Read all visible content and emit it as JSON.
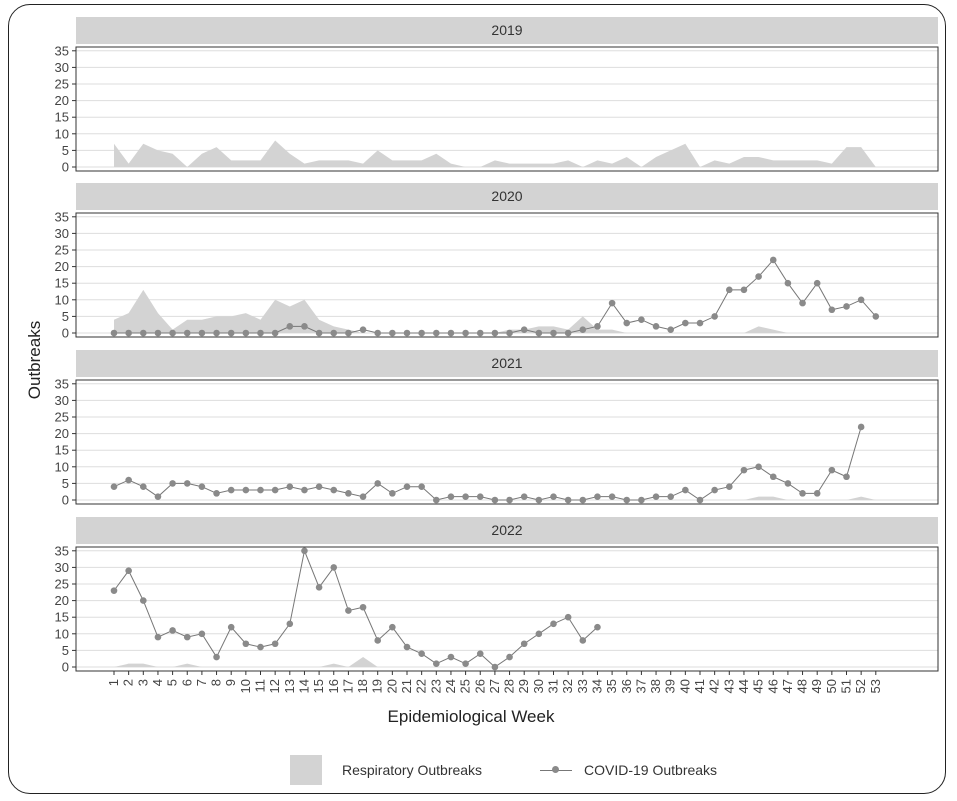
{
  "chart_data": {
    "type": "line",
    "ylabel": "Outbreaks",
    "xlabel": "Epidemiological Week",
    "ylim": [
      0,
      35
    ],
    "yticks": [
      0,
      5,
      10,
      15,
      20,
      25,
      30,
      35
    ],
    "weeks": [
      "1",
      "2",
      "3",
      "4",
      "5",
      "6",
      "7",
      "8",
      "9",
      "10",
      "11",
      "12",
      "13",
      "14",
      "15",
      "16",
      "17",
      "18",
      "19",
      "20",
      "21",
      "22",
      "23",
      "24",
      "25",
      "26",
      "27",
      "28",
      "29",
      "30",
      "31",
      "32",
      "33",
      "34",
      "35",
      "36",
      "37",
      "38",
      "39",
      "40",
      "41",
      "42",
      "43",
      "44",
      "45",
      "46",
      "47",
      "48",
      "49",
      "50",
      "51",
      "52",
      "53"
    ],
    "colors": {
      "area": "#d3d3d3",
      "line": "#777777",
      "marker": "#8a8a8a",
      "strip": "#d3d3d3"
    },
    "legend": {
      "area_label": "Respiratory Outbreaks",
      "line_label": "COVID-19 Outbreaks",
      "position": "bottom"
    },
    "panels": [
      {
        "title": "2019",
        "respiratory": [
          7,
          1,
          7,
          5,
          4,
          0,
          4,
          6,
          2,
          2,
          2,
          8,
          4,
          1,
          2,
          2,
          2,
          1,
          5,
          2,
          2,
          2,
          4,
          1,
          0,
          0,
          2,
          1,
          1,
          1,
          1,
          2,
          0,
          2,
          1,
          3,
          0,
          3,
          5,
          7,
          0,
          2,
          1,
          3,
          3,
          2,
          2,
          2,
          2,
          1,
          6,
          6,
          0
        ],
        "covid": []
      },
      {
        "title": "2020",
        "respiratory": [
          4,
          6,
          13,
          6,
          1,
          4,
          4,
          5,
          5,
          6,
          4,
          10,
          8,
          10,
          4,
          2,
          1,
          0,
          0,
          0,
          0,
          0,
          0,
          0,
          0,
          0,
          0,
          1,
          1,
          2,
          2,
          1,
          5,
          1,
          1,
          0,
          0,
          0,
          0,
          0,
          0,
          0,
          0,
          0,
          2,
          1,
          0,
          0,
          0,
          0,
          0,
          0,
          0
        ],
        "covid": [
          0,
          0,
          0,
          0,
          0,
          0,
          0,
          0,
          0,
          0,
          0,
          0,
          2,
          2,
          0,
          0,
          0,
          1,
          0,
          0,
          0,
          0,
          0,
          0,
          0,
          0,
          0,
          0,
          1,
          0,
          0,
          0,
          1,
          2,
          9,
          3,
          4,
          2,
          1,
          3,
          3,
          5,
          13,
          13,
          17,
          22,
          15,
          9,
          15,
          7,
          8,
          10,
          5
        ]
      },
      {
        "title": "2021",
        "respiratory": [
          0,
          0,
          0,
          0,
          0,
          0,
          0,
          0,
          0,
          0,
          0,
          0,
          0,
          0,
          0,
          0,
          0,
          0,
          0,
          0,
          0,
          0,
          0,
          0,
          0,
          0,
          0,
          0,
          0,
          0,
          0,
          0,
          0,
          0,
          0,
          0,
          0,
          0,
          0,
          0,
          0,
          0,
          0,
          0,
          1,
          1,
          0,
          0,
          0,
          0,
          0,
          1,
          0
        ],
        "covid": [
          4,
          6,
          4,
          1,
          5,
          5,
          4,
          2,
          3,
          3,
          3,
          3,
          4,
          3,
          4,
          3,
          2,
          1,
          5,
          2,
          4,
          4,
          0,
          1,
          1,
          1,
          0,
          0,
          1,
          0,
          1,
          0,
          0,
          1,
          1,
          0,
          0,
          1,
          1,
          3,
          0,
          3,
          4,
          9,
          10,
          7,
          5,
          2,
          2,
          9,
          7,
          22
        ]
      },
      {
        "title": "2022",
        "respiratory": [
          0,
          1,
          1,
          0,
          0,
          1,
          0,
          0,
          0,
          0,
          0,
          0,
          0,
          0,
          0,
          1,
          0,
          3,
          0,
          0,
          0,
          0,
          0,
          0,
          0,
          0,
          0,
          0,
          0,
          0,
          0,
          0,
          0,
          0,
          0,
          0,
          0,
          0,
          0,
          0,
          0,
          0,
          0,
          0,
          0,
          0,
          0,
          0,
          0,
          0,
          0,
          0,
          0
        ],
        "covid": [
          23,
          29,
          20,
          9,
          11,
          9,
          10,
          3,
          12,
          7,
          6,
          7,
          13,
          35,
          24,
          30,
          17,
          18,
          8,
          12,
          6,
          4,
          1,
          3,
          1,
          4,
          0,
          3,
          7,
          10,
          13,
          15,
          8,
          12
        ]
      }
    ]
  }
}
